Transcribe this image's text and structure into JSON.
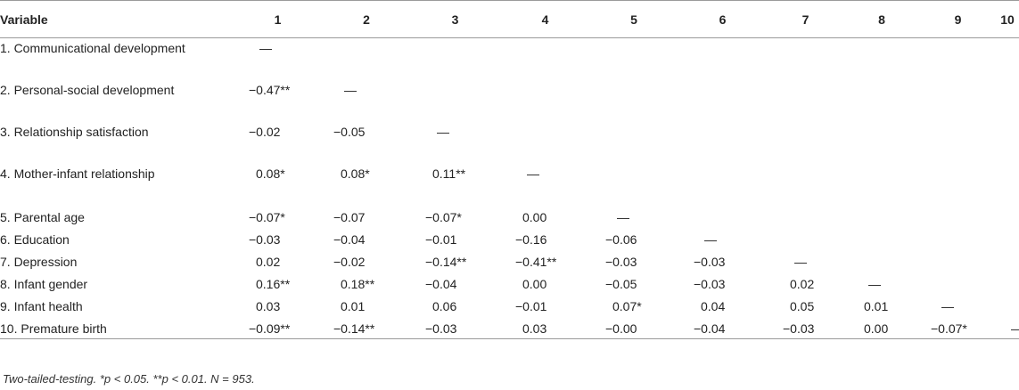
{
  "table": {
    "headers": [
      "Variable",
      "1",
      "2",
      "3",
      "4",
      "5",
      "6",
      "7",
      "8",
      "9",
      "10"
    ],
    "rows": [
      {
        "label": "1. Communicational development",
        "cells": [
          "—",
          "",
          "",
          "",
          "",
          "",
          "",
          "",
          "",
          ""
        ]
      },
      {
        "label": "2. Personal-social development",
        "cells": [
          "−0.47**",
          "—",
          "",
          "",
          "",
          "",
          "",
          "",
          "",
          ""
        ]
      },
      {
        "label": "3. Relationship satisfaction",
        "cells": [
          "−0.02",
          "−0.05",
          "—",
          "",
          "",
          "",
          "",
          "",
          "",
          ""
        ]
      },
      {
        "label": "4. Mother-infant relationship",
        "cells": [
          "0.08*",
          "0.08*",
          "0.11**",
          "—",
          "",
          "",
          "",
          "",
          "",
          ""
        ]
      },
      {
        "label": "5. Parental age",
        "cells": [
          "−0.07*",
          "−0.07",
          "−0.07*",
          "0.00",
          "—",
          "",
          "",
          "",
          "",
          ""
        ]
      },
      {
        "label": "6. Education",
        "cells": [
          "−0.03",
          "−0.04",
          "−0.01",
          "−0.16",
          "−0.06",
          "—",
          "",
          "",
          "",
          ""
        ]
      },
      {
        "label": "7. Depression",
        "cells": [
          "0.02",
          "−0.02",
          "−0.14**",
          "−0.41**",
          "−0.03",
          "−0.03",
          "—",
          "",
          "",
          ""
        ]
      },
      {
        "label": "8. Infant gender",
        "cells": [
          "0.16**",
          "0.18**",
          "−0.04",
          "0.00",
          "−0.05",
          "−0.03",
          "0.02",
          "—",
          "",
          ""
        ]
      },
      {
        "label": "9. Infant health",
        "cells": [
          "0.03",
          "0.01",
          "0.06",
          "−0.01",
          "0.07*",
          "0.04",
          "0.05",
          "0.01",
          "—",
          ""
        ]
      },
      {
        "label": "10. Premature birth",
        "cells": [
          "−0.09**",
          "−0.14**",
          "−0.03",
          "0.03",
          "−0.00",
          "−0.04",
          "−0.03",
          "0.00",
          "−0.07*",
          "—"
        ]
      }
    ]
  },
  "footnote": "Two-tailed-testing. *p < 0.05. **p < 0.01. N = 953."
}
